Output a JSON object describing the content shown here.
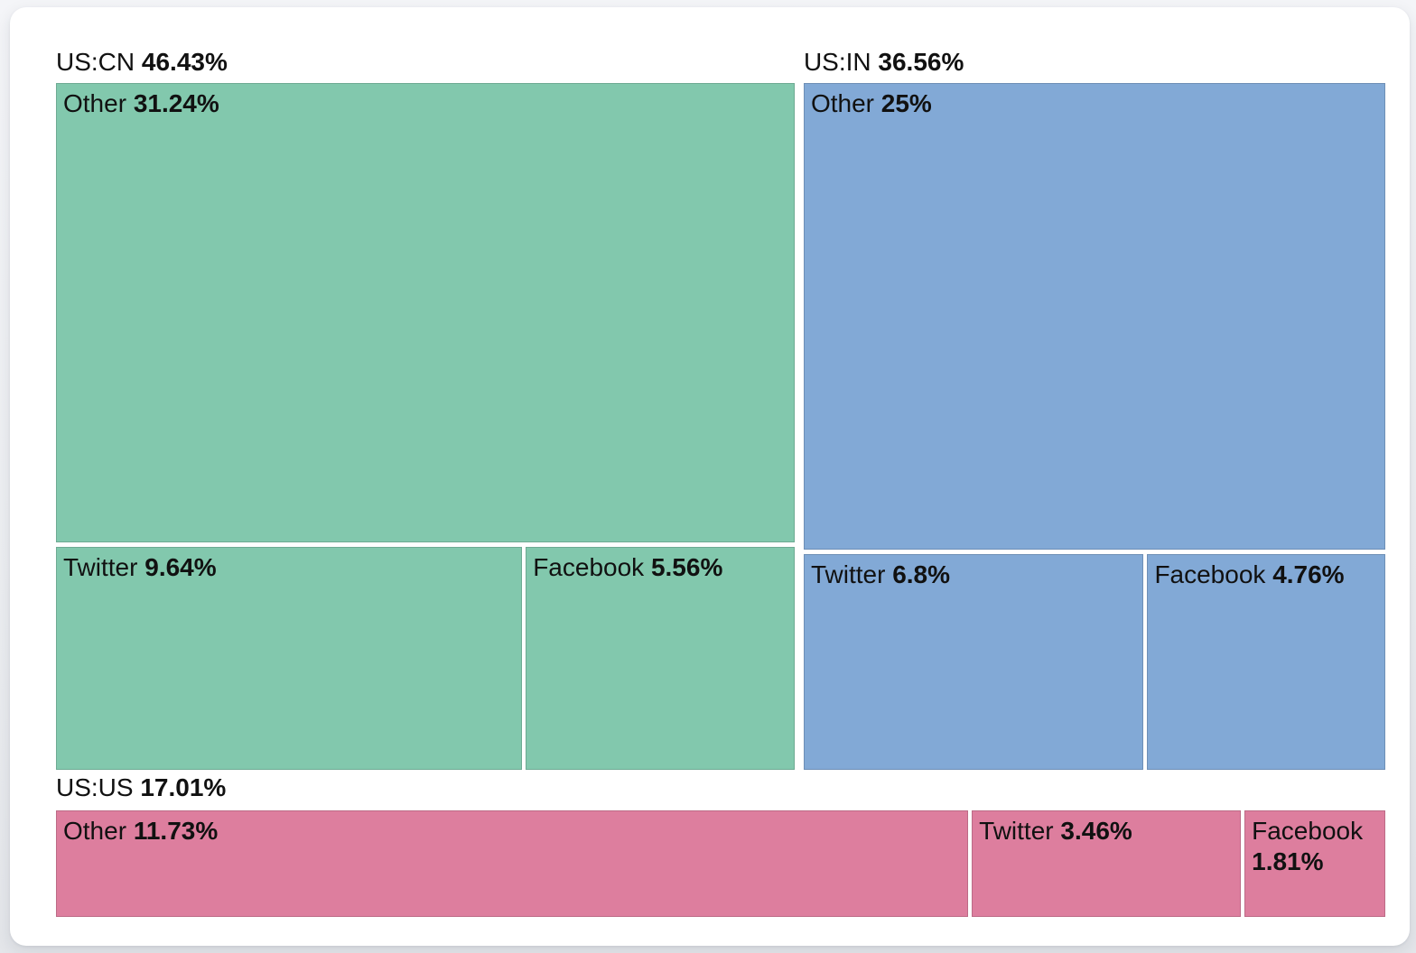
{
  "chart_data": {
    "type": "treemap",
    "title": "",
    "layout_hint": "treemap: US:CN and US:IN groups side-by-side on top row, US:US as full-width strip at bottom; group label with bold percent shown above each group; cell label with bold percent in top-left of each cell; white gaps between cells; no legend, no axes",
    "unit": "%",
    "colors": {
      "us_cn": "#82c8ad",
      "us_in": "#82a9d6",
      "us_us": "#dd7e9e"
    },
    "groups": [
      {
        "label": "US:CN",
        "value": 46.43,
        "display": "46.43%",
        "color": "#82c8ad",
        "children": [
          {
            "label": "Other",
            "value": 31.24,
            "display": "31.24%"
          },
          {
            "label": "Twitter",
            "value": 9.64,
            "display": "9.64%"
          },
          {
            "label": "Facebook",
            "value": 5.56,
            "display": "5.56%"
          }
        ]
      },
      {
        "label": "US:IN",
        "value": 36.56,
        "display": "36.56%",
        "color": "#82a9d6",
        "children": [
          {
            "label": "Other",
            "value": 25,
            "display": "25%"
          },
          {
            "label": "Twitter",
            "value": 6.8,
            "display": "6.8%"
          },
          {
            "label": "Facebook",
            "value": 4.76,
            "display": "4.76%"
          }
        ]
      },
      {
        "label": "US:US",
        "value": 17.01,
        "display": "17.01%",
        "color": "#dd7e9e",
        "children": [
          {
            "label": "Other",
            "value": 11.73,
            "display": "11.73%"
          },
          {
            "label": "Twitter",
            "value": 3.46,
            "display": "3.46%"
          },
          {
            "label": "Facebook",
            "value": 1.81,
            "display": "1.81%"
          }
        ]
      }
    ]
  }
}
